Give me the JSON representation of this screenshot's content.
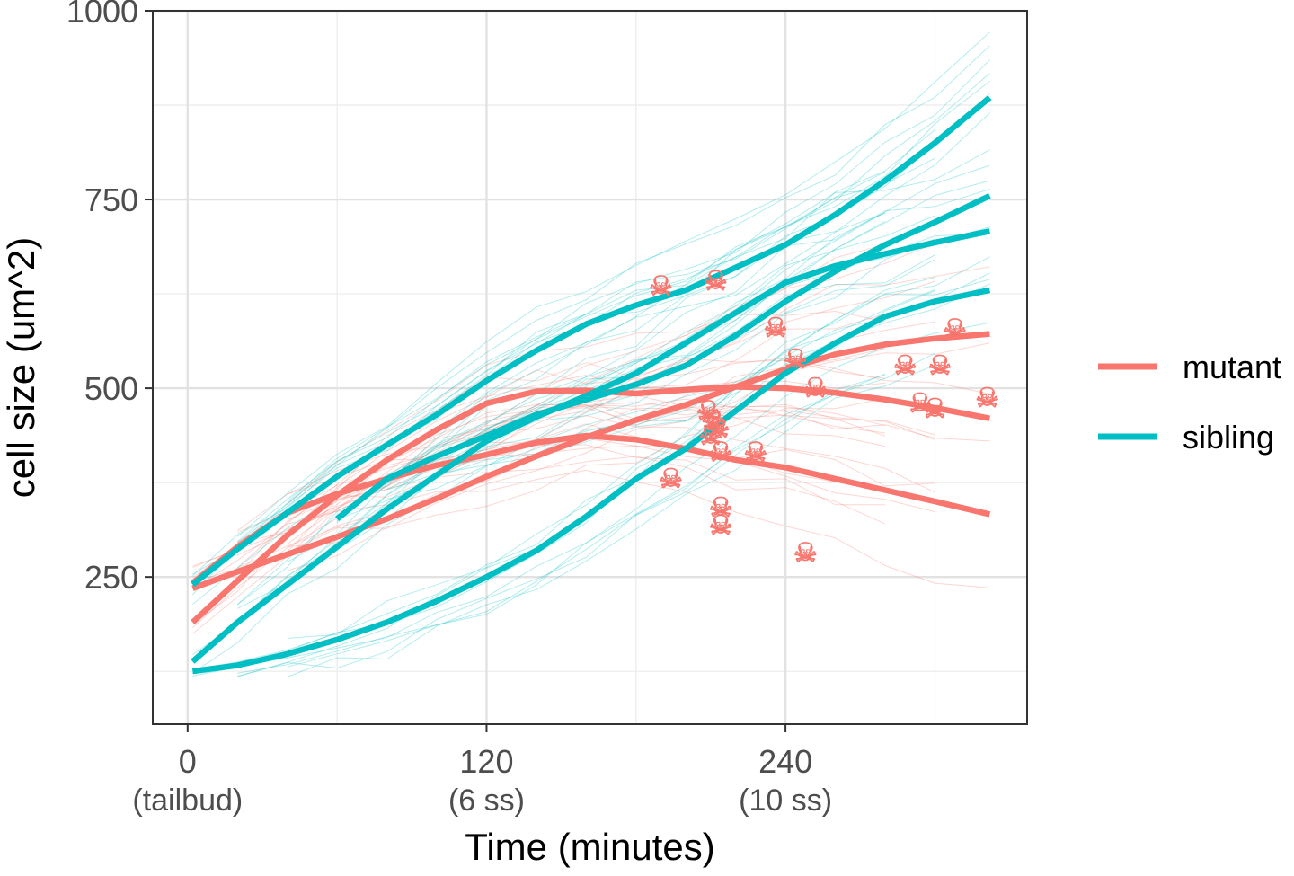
{
  "chart_data": {
    "type": "line",
    "xlabel": "Time (minutes)",
    "ylabel": "cell size (um^2)",
    "x_ticks": [
      {
        "value": 0,
        "label": "0",
        "sublabel": "(tailbud)"
      },
      {
        "value": 120,
        "label": "120",
        "sublabel": "(6 ss)"
      },
      {
        "value": 240,
        "label": "240",
        "sublabel": "(10 ss)"
      }
    ],
    "y_ticks": [
      {
        "value": 250,
        "label": "250"
      },
      {
        "value": 500,
        "label": "500"
      },
      {
        "value": 750,
        "label": "750"
      },
      {
        "value": 1000,
        "label": "1000"
      }
    ],
    "xlim": [
      -14,
      337
    ],
    "ylim": [
      55,
      1000
    ],
    "grid": true,
    "legend_position": "right",
    "colors": {
      "mutant": "#f8766d",
      "sibling": "#00bfc4"
    },
    "legend": [
      {
        "name": "mutant",
        "color": "#f8766d"
      },
      {
        "name": "sibling",
        "color": "#00bfc4"
      }
    ],
    "death_marker_icon": "skull-crossbones-icon",
    "series": [
      {
        "name": "mutant",
        "x": [
          2,
          20,
          40,
          60,
          80,
          100,
          120,
          140,
          160,
          180,
          200,
          220,
          240,
          260,
          280,
          300,
          322
        ],
        "values": [
          190,
          245,
          305,
          358,
          405,
          445,
          480,
          496,
          497,
          493,
          498,
          502,
          500,
          494,
          485,
          474,
          460
        ]
      },
      {
        "name": "mutant",
        "x": [
          2,
          20,
          40,
          60,
          80,
          100,
          120,
          140,
          160,
          180,
          200,
          220,
          240,
          260,
          280,
          300,
          322
        ],
        "values": [
          235,
          257,
          280,
          303,
          327,
          354,
          383,
          410,
          435,
          458,
          478,
          502,
          525,
          545,
          558,
          566,
          572
        ]
      },
      {
        "name": "mutant",
        "x": [
          2,
          20,
          40,
          60,
          80,
          100,
          120,
          140,
          160,
          180,
          200,
          220,
          240,
          260,
          280,
          300,
          322
        ],
        "values": [
          242,
          290,
          335,
          360,
          380,
          398,
          412,
          428,
          437,
          432,
          420,
          405,
          395,
          380,
          365,
          350,
          333
        ]
      },
      {
        "name": "sibling",
        "x": [
          2,
          20,
          40,
          60,
          80,
          100,
          120,
          140,
          160,
          180,
          200,
          220,
          240,
          260,
          280,
          300,
          322
        ],
        "values": [
          240,
          287,
          335,
          383,
          425,
          465,
          510,
          550,
          585,
          610,
          630,
          660,
          690,
          730,
          775,
          825,
          885
        ]
      },
      {
        "name": "sibling",
        "x": [
          60,
          80,
          100,
          120,
          140,
          160,
          180,
          200,
          220,
          240,
          260,
          280,
          300,
          322
        ],
        "values": [
          327,
          380,
          410,
          437,
          465,
          485,
          505,
          530,
          570,
          615,
          655,
          690,
          720,
          755
        ]
      },
      {
        "name": "sibling",
        "x": [
          2,
          20,
          40,
          60,
          80,
          100,
          120,
          140,
          160,
          180,
          200,
          220,
          240,
          260,
          280,
          300,
          322
        ],
        "values": [
          125,
          133,
          148,
          167,
          190,
          218,
          250,
          285,
          330,
          380,
          420,
          470,
          520,
          560,
          595,
          615,
          630
        ]
      },
      {
        "name": "sibling",
        "x": [
          2,
          20,
          40,
          60,
          80,
          100,
          120,
          140,
          160,
          180,
          200,
          220,
          240,
          260,
          280,
          300,
          322
        ],
        "values": [
          138,
          190,
          240,
          290,
          340,
          385,
          430,
          462,
          490,
          520,
          560,
          600,
          640,
          662,
          678,
          693,
          708
        ]
      }
    ],
    "death_markers": [
      {
        "x": 190,
        "y": 635
      },
      {
        "x": 212,
        "y": 642
      },
      {
        "x": 236,
        "y": 580
      },
      {
        "x": 244,
        "y": 538
      },
      {
        "x": 252,
        "y": 500
      },
      {
        "x": 288,
        "y": 530
      },
      {
        "x": 302,
        "y": 530
      },
      {
        "x": 308,
        "y": 578
      },
      {
        "x": 294,
        "y": 480
      },
      {
        "x": 300,
        "y": 473
      },
      {
        "x": 321,
        "y": 487
      },
      {
        "x": 209,
        "y": 470
      },
      {
        "x": 211,
        "y": 458
      },
      {
        "x": 213,
        "y": 447
      },
      {
        "x": 210,
        "y": 437
      },
      {
        "x": 214,
        "y": 415
      },
      {
        "x": 228,
        "y": 415
      },
      {
        "x": 194,
        "y": 380
      },
      {
        "x": 214,
        "y": 342
      },
      {
        "x": 214,
        "y": 318
      },
      {
        "x": 248,
        "y": 282
      }
    ]
  }
}
